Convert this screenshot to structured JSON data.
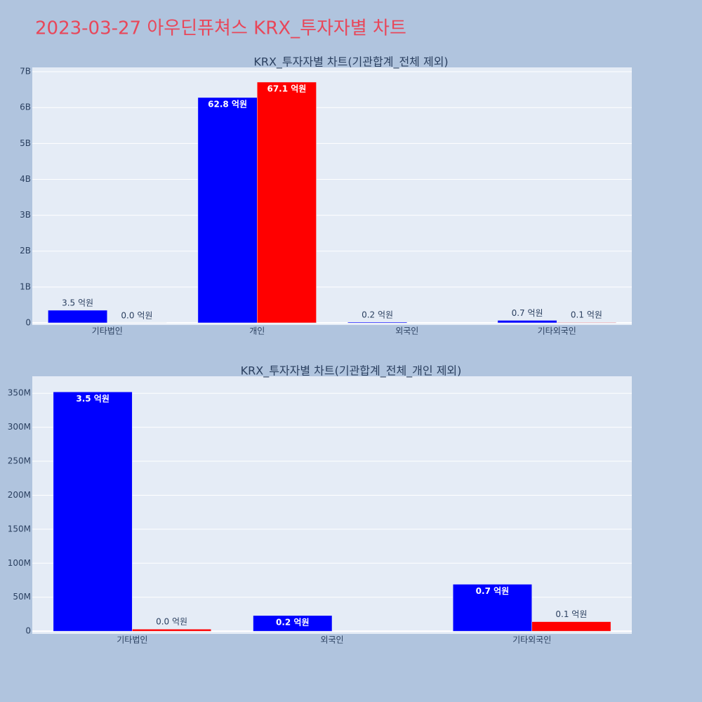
{
  "title": "2023-03-27 아우딘퓨쳐스 KRX_투자자별 차트",
  "chart_data": [
    {
      "type": "bar",
      "title": "KRX_투자자별 차트(기관합계_전체 제외)",
      "categories": [
        "기타법인",
        "개인",
        "외국인",
        "기타외국인"
      ],
      "series": [
        {
          "color": "#0000ff",
          "values": [
            352000000,
            6280000000,
            23000000,
            69000000
          ],
          "value_labels": [
            "3.5 억원",
            "62.8 억원",
            "0.2 억원",
            "0.7 억원"
          ]
        },
        {
          "color": "#ff0000",
          "values": [
            3000000,
            6710000000,
            null,
            14000000
          ],
          "value_labels": [
            "0.0 억원",
            "67.1 억원",
            null,
            "0.1 억원"
          ]
        }
      ],
      "ylim": [
        -60000000,
        7120000000
      ],
      "yticks": [
        0,
        {
          "value": 1000000000,
          "label": "1B"
        },
        {
          "value": 2000000000,
          "label": "2B"
        },
        {
          "value": 3000000000,
          "label": "3B"
        },
        {
          "value": 4000000000,
          "label": "4B"
        },
        {
          "value": 5000000000,
          "label": "5B"
        },
        {
          "value": 6000000000,
          "label": "6B"
        },
        {
          "value": 7000000000,
          "label": "7B"
        }
      ],
      "grid": true
    },
    {
      "type": "bar",
      "title": "KRX_투자자별 차트(기관합계_전체_개인 제외)",
      "categories": [
        "기타법인",
        "외국인",
        "기타외국인"
      ],
      "series": [
        {
          "color": "#0000ff",
          "values": [
            352000000,
            23000000,
            69000000
          ],
          "value_labels": [
            "3.5 억원",
            "0.2 억원",
            "0.7 억원"
          ]
        },
        {
          "color": "#ff0000",
          "values": [
            3000000,
            null,
            14000000
          ],
          "value_labels": [
            "0.0 억원",
            null,
            "0.1 억원"
          ]
        }
      ],
      "ylim": [
        -4000000,
        375000000
      ],
      "yticks": [
        0,
        {
          "value": 50000000,
          "label": "50M"
        },
        {
          "value": 100000000,
          "label": "100M"
        },
        {
          "value": 150000000,
          "label": "150M"
        },
        {
          "value": 200000000,
          "label": "200M"
        },
        {
          "value": 250000000,
          "label": "250M"
        },
        {
          "value": 300000000,
          "label": "300M"
        },
        {
          "value": 350000000,
          "label": "350M"
        }
      ],
      "grid": true
    }
  ]
}
